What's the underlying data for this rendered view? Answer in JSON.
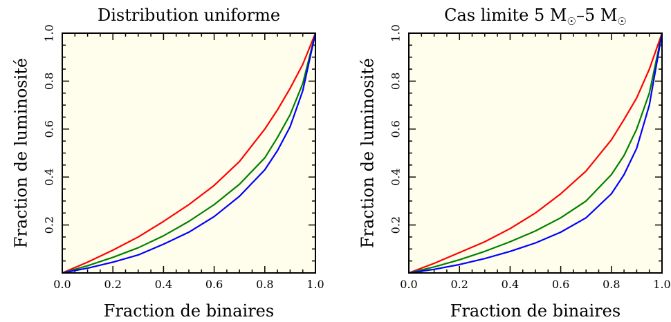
{
  "chart_data": [
    {
      "type": "line",
      "title": "Distribution uniforme",
      "title_subscript": "",
      "xlabel": "Fraction de binaires",
      "ylabel": "Fraction de luminosité",
      "xlim": [
        0,
        1
      ],
      "ylim": [
        0,
        1
      ],
      "xticks": [
        "0.0",
        "0.2",
        "0.4",
        "0.6",
        "0.8",
        "1.0"
      ],
      "yticks": [
        "0.2",
        "0.4",
        "0.6",
        "0.8",
        "1.0"
      ],
      "background": "#fffdeb",
      "grid": false,
      "series": [
        {
          "color": "#ff0000",
          "x": [
            0,
            0.1,
            0.2,
            0.3,
            0.4,
            0.5,
            0.6,
            0.7,
            0.8,
            0.85,
            0.9,
            0.95,
            1.0
          ],
          "y": [
            0,
            0.045,
            0.095,
            0.15,
            0.215,
            0.285,
            0.365,
            0.465,
            0.6,
            0.68,
            0.77,
            0.87,
            1.0
          ]
        },
        {
          "color": "#008000",
          "x": [
            0,
            0.1,
            0.2,
            0.3,
            0.4,
            0.5,
            0.6,
            0.7,
            0.8,
            0.85,
            0.9,
            0.95,
            1.0
          ],
          "y": [
            0,
            0.03,
            0.065,
            0.105,
            0.155,
            0.215,
            0.285,
            0.37,
            0.48,
            0.565,
            0.66,
            0.79,
            1.0
          ]
        },
        {
          "color": "#0000ff",
          "x": [
            0,
            0.1,
            0.2,
            0.3,
            0.4,
            0.5,
            0.6,
            0.7,
            0.8,
            0.85,
            0.9,
            0.95,
            1.0
          ],
          "y": [
            0,
            0.02,
            0.045,
            0.075,
            0.12,
            0.17,
            0.235,
            0.32,
            0.43,
            0.51,
            0.61,
            0.76,
            1.0
          ]
        }
      ]
    },
    {
      "type": "line",
      "title": "Cas limite 5 M–5 M",
      "title_subscript": "☉",
      "xlabel": "Fraction de binaires",
      "ylabel": "Fraction de luminosité",
      "xlim": [
        0,
        1
      ],
      "ylim": [
        0,
        1
      ],
      "xticks": [
        "0.0",
        "0.2",
        "0.4",
        "0.6",
        "0.8",
        "1.0"
      ],
      "yticks": [
        "0.2",
        "0.4",
        "0.6",
        "0.8",
        "1.0"
      ],
      "background": "#fffdeb",
      "grid": false,
      "series": [
        {
          "color": "#ff0000",
          "x": [
            0,
            0.1,
            0.2,
            0.3,
            0.4,
            0.5,
            0.6,
            0.7,
            0.8,
            0.85,
            0.9,
            0.95,
            1.0
          ],
          "y": [
            0,
            0.04,
            0.085,
            0.13,
            0.185,
            0.25,
            0.33,
            0.425,
            0.555,
            0.64,
            0.73,
            0.85,
            1.0
          ]
        },
        {
          "color": "#008000",
          "x": [
            0,
            0.1,
            0.2,
            0.3,
            0.4,
            0.5,
            0.6,
            0.7,
            0.8,
            0.85,
            0.9,
            0.95,
            1.0
          ],
          "y": [
            0,
            0.025,
            0.055,
            0.09,
            0.13,
            0.175,
            0.23,
            0.3,
            0.41,
            0.49,
            0.6,
            0.75,
            1.0
          ]
        },
        {
          "color": "#0000ff",
          "x": [
            0,
            0.1,
            0.2,
            0.3,
            0.4,
            0.5,
            0.6,
            0.7,
            0.8,
            0.85,
            0.9,
            0.95,
            1.0
          ],
          "y": [
            0,
            0.015,
            0.035,
            0.06,
            0.09,
            0.125,
            0.17,
            0.23,
            0.33,
            0.41,
            0.52,
            0.7,
            1.0
          ]
        }
      ]
    }
  ]
}
